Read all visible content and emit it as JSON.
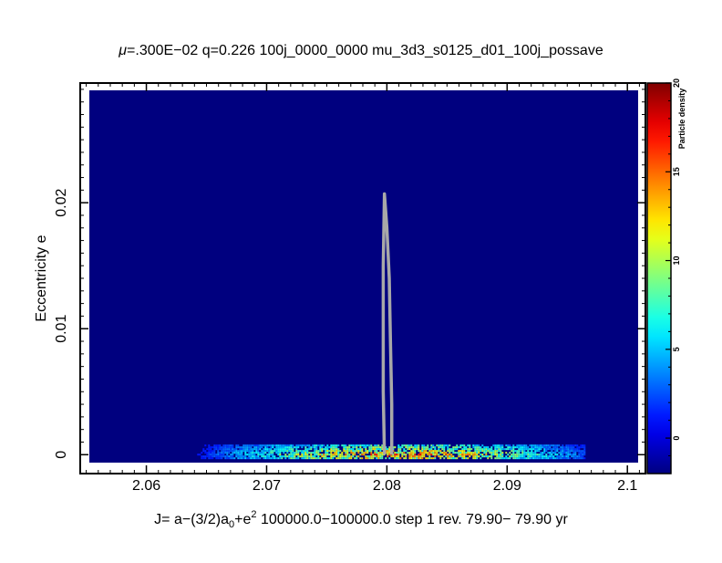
{
  "title": {
    "mu_symbol": "μ",
    "rest": "=.300E−02 q=0.226 100j_0000_0000   mu_3d3_s0125_d01_100j_possave"
  },
  "xlabel": {
    "p1": "J= a−(3/2)a",
    "sub": "0",
    "p2": "+e",
    "sup": "2",
    "p3": " 100000.0−100000.0 step  1 rev.  79.90−  79.90 yr"
  },
  "ylabel": "Eccentricity e",
  "colorbar": {
    "title": "Particle density",
    "range": [
      -2,
      20
    ],
    "ticks": [
      {
        "v": 0,
        "label": "0"
      },
      {
        "v": 5,
        "label": "5"
      },
      {
        "v": 10,
        "label": "10"
      },
      {
        "v": 15,
        "label": "15"
      },
      {
        "v": 20,
        "label": "20"
      }
    ]
  },
  "colors": {
    "background": "#00007f",
    "curve": "#a8a8a8"
  },
  "chart_data": {
    "type": "heatmap",
    "xlim": [
      2.0545,
      2.1015
    ],
    "ylim": [
      -0.0015,
      0.0295
    ],
    "xticks": [
      {
        "v": 2.06,
        "label": "2.06"
      },
      {
        "v": 2.07,
        "label": "2.07"
      },
      {
        "v": 2.08,
        "label": "2.08"
      },
      {
        "v": 2.09,
        "label": "2.09"
      },
      {
        "v": 2.1,
        "label": "2.1"
      }
    ],
    "yticks": [
      {
        "v": 0,
        "label": "0"
      },
      {
        "v": 0.01,
        "label": "0.01"
      },
      {
        "v": 0.02,
        "label": "0.02"
      }
    ],
    "density_band": {
      "x_range": [
        2.0615,
        2.0965
      ],
      "e_range": [
        0.0,
        0.0008
      ],
      "peak_x": 2.081,
      "peak_density": 18
    },
    "curve": {
      "points": [
        [
          2.0798,
          0.0
        ],
        [
          2.0797,
          0.005
        ],
        [
          2.0797,
          0.01
        ],
        [
          2.0797,
          0.015
        ],
        [
          2.0798,
          0.0207
        ],
        [
          2.08,
          0.018
        ],
        [
          2.0802,
          0.014
        ],
        [
          2.0803,
          0.009
        ],
        [
          2.0804,
          0.004
        ],
        [
          2.0804,
          0.0
        ]
      ]
    }
  }
}
